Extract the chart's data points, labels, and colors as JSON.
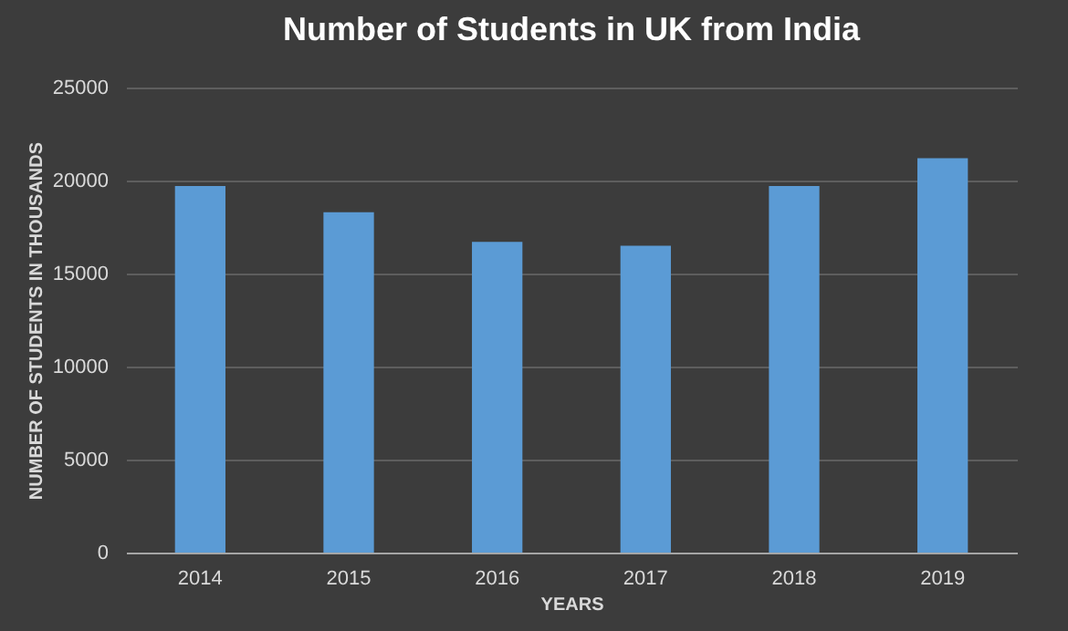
{
  "chart_data": {
    "type": "bar",
    "title": "Number of Students in UK from India",
    "xlabel": "YEARS",
    "ylabel": "NUMBER OF STUDENTS IN THOUSANDS",
    "categories": [
      "2014",
      "2015",
      "2016",
      "2017",
      "2018",
      "2019"
    ],
    "values": [
      19700,
      18300,
      16700,
      16500,
      19700,
      21200
    ],
    "color": "#5b9bd5",
    "ylim": [
      0,
      25000
    ],
    "yticks": [
      0,
      5000,
      10000,
      15000,
      20000,
      25000
    ],
    "grid": "y"
  }
}
